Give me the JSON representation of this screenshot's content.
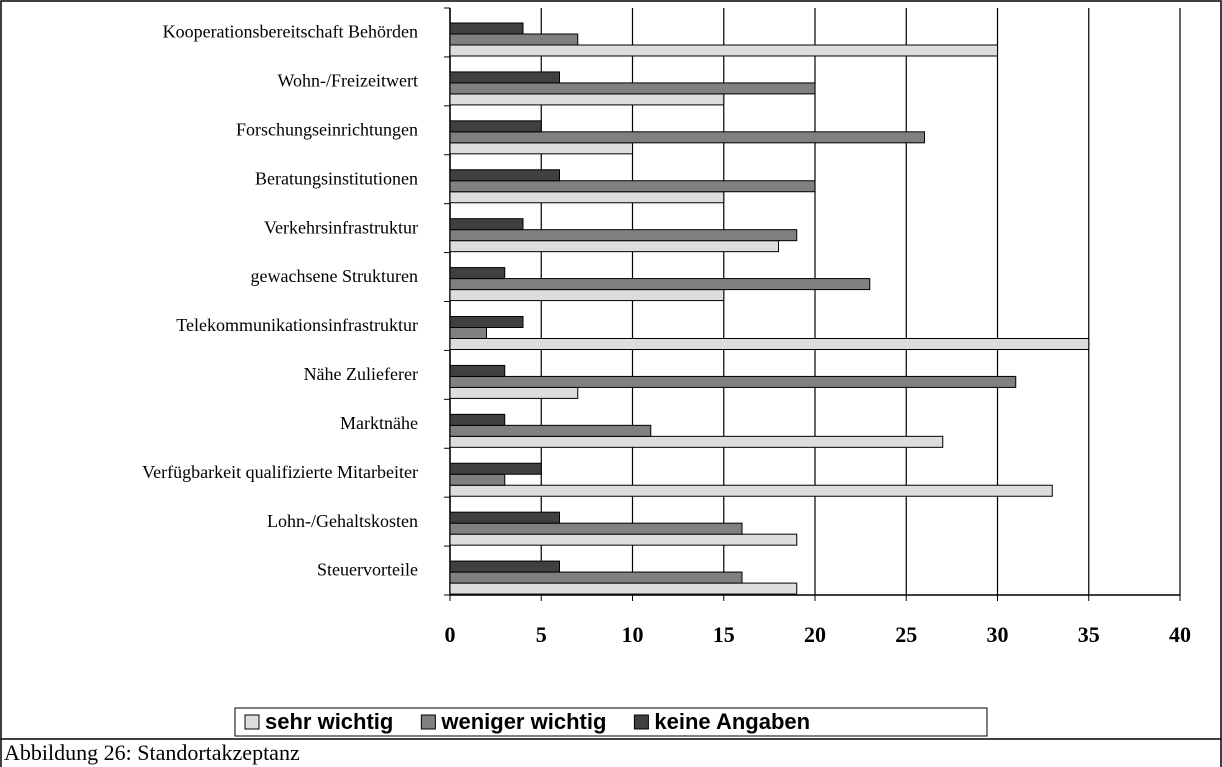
{
  "chart_data": {
    "type": "bar",
    "orientation": "horizontal",
    "categories": [
      "Kooperationsbereitschaft Behörden",
      "Wohn-/Freizeitwert",
      "Forschungseinrichtungen",
      "Beratungsinstitutionen",
      "Verkehrsinfrastruktur",
      "gewachsene Strukturen",
      "Telekommunikationsinfrastruktur",
      "Nähe Zulieferer",
      "Marktnähe",
      "Verfügbarkeit qualifizierte Mitarbeiter",
      "Lohn-/Gehaltskosten",
      "Steuervorteile"
    ],
    "series": [
      {
        "name": "sehr wichtig",
        "color": "#dddddd",
        "values": [
          30,
          15,
          10,
          15,
          18,
          15,
          35,
          7,
          27,
          33,
          19,
          19
        ]
      },
      {
        "name": "weniger wichtig",
        "color": "#808080",
        "values": [
          7,
          20,
          26,
          20,
          19,
          23,
          2,
          31,
          11,
          3,
          16,
          16
        ]
      },
      {
        "name": "keine Angaben",
        "color": "#404040",
        "values": [
          4,
          6,
          5,
          6,
          4,
          3,
          4,
          3,
          3,
          5,
          6,
          6
        ]
      }
    ],
    "xlim": [
      0,
      40
    ],
    "xticks": [
      0,
      5,
      10,
      15,
      20,
      25,
      30,
      35,
      40
    ],
    "grid": true,
    "legend": "bottom",
    "caption": "Abbildung 26: Standortakzeptanz"
  }
}
